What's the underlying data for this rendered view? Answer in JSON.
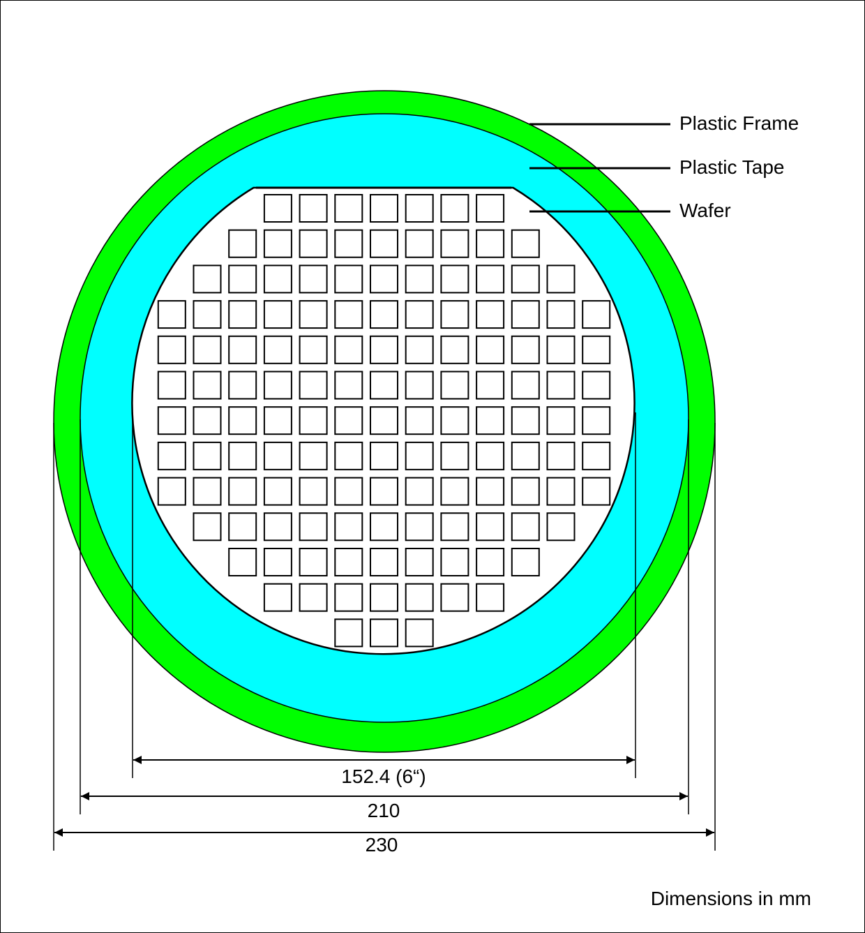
{
  "labels": {
    "frame": "Plastic Frame",
    "tape": "Plastic Tape",
    "wafer": "Wafer"
  },
  "dimensions": {
    "wafer": "152.4 (6“)",
    "tape": "210",
    "frame": "230"
  },
  "footer": {
    "units_note": "Dimensions in mm"
  },
  "colors": {
    "frame": "#00ff00",
    "tape": "#00ffff",
    "wafer": "#ffffff",
    "stroke": "#000000"
  },
  "die_grid": {
    "row_counts": [
      7,
      9,
      11,
      13,
      13,
      13,
      13,
      13,
      13,
      11,
      9,
      7,
      3
    ]
  }
}
